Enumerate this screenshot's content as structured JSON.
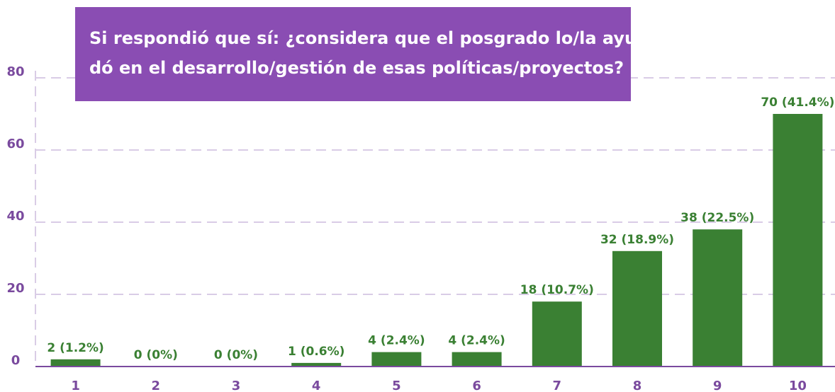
{
  "chart_data": {
    "type": "bar",
    "title": [
      "Si respondió que sí: ¿considera que el posgrado lo/la ayu-",
      "dó en el desarrollo/gestión de esas políticas/proyectos?"
    ],
    "categories": [
      "1",
      "2",
      "3",
      "4",
      "5",
      "6",
      "7",
      "8",
      "9",
      "10"
    ],
    "values": [
      2,
      0,
      0,
      1,
      4,
      4,
      18,
      32,
      38,
      70
    ],
    "value_labels": [
      "2 (1.2%)",
      "0 (0%)",
      "0 (0%)",
      "1 (0.6%)",
      "4 (2.4%)",
      "4 (2.4%)",
      "18 (10.7%)",
      "32 (18.9%)",
      "38 (22.5%)",
      "70 (41.4%)"
    ],
    "color": "#3a8033",
    "ylim": [
      0,
      80
    ],
    "yticks": [
      0,
      20,
      40,
      60,
      80
    ],
    "grid": true
  }
}
